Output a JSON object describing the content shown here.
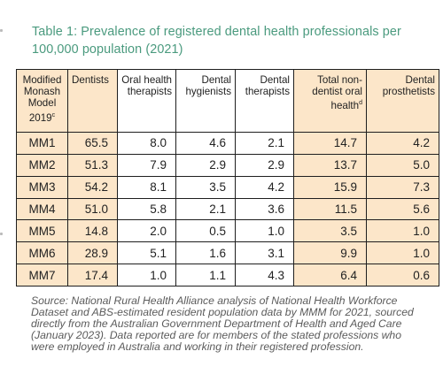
{
  "title": "Table 1: Prevalence of registered dental health professionals per 100,000 population (2021)",
  "columns": [
    {
      "label": "Modified Monash Model 2019",
      "sup": "c"
    },
    {
      "label": "Dentists",
      "sup": ""
    },
    {
      "label": "Oral health therapists",
      "sup": ""
    },
    {
      "label": "Dental hygienists",
      "sup": ""
    },
    {
      "label": "Dental therapists",
      "sup": ""
    },
    {
      "label": "Total non-dentist oral health",
      "sup": "d"
    },
    {
      "label": "Dental prosthetists",
      "sup": ""
    }
  ],
  "rows": [
    {
      "label": "MM1",
      "cells": [
        "65.5",
        "8.0",
        "4.6",
        "2.1",
        "14.7",
        "4.2"
      ]
    },
    {
      "label": "MM2",
      "cells": [
        "51.3",
        "7.9",
        "2.9",
        "2.9",
        "13.7",
        "5.0"
      ]
    },
    {
      "label": "MM3",
      "cells": [
        "54.2",
        "8.1",
        "3.5",
        "4.2",
        "15.9",
        "7.3"
      ]
    },
    {
      "label": "MM4",
      "cells": [
        "51.0",
        "5.8",
        "2.1",
        "3.6",
        "11.5",
        "5.6"
      ]
    },
    {
      "label": "MM5",
      "cells": [
        "14.8",
        "2.0",
        "0.5",
        "1.0",
        "3.5",
        "1.0"
      ]
    },
    {
      "label": "MM6",
      "cells": [
        "28.9",
        "5.1",
        "1.6",
        "3.1",
        "9.9",
        "1.0"
      ]
    },
    {
      "label": "MM7",
      "cells": [
        "17.4",
        "1.0",
        "1.1",
        "4.3",
        "6.4",
        "0.6"
      ]
    }
  ],
  "source": "Source: National Rural Health Alliance analysis of National Health Workforce Dataset and ABS-estimated resident population data by MMM for 2021, sourced directly from the Australian Government Department of Health and Aged Care (January 2023). Data reported are for members of the stated professions who were employed in Australia and working in their registered profession.",
  "colors": {
    "title": "#4a9a7e",
    "highlight": "#fce6c9",
    "source_text": "#5b5b5b",
    "border": "#1e1e1e"
  }
}
